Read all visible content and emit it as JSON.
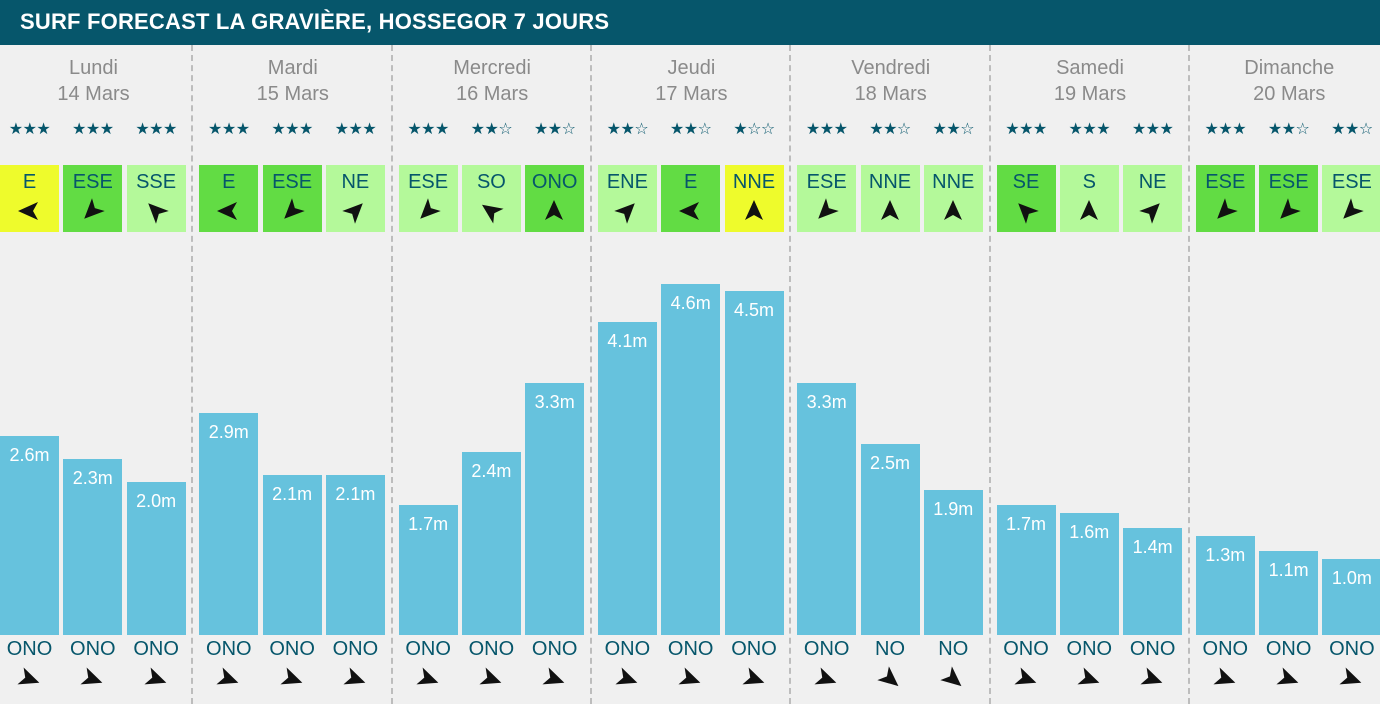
{
  "header": {
    "title": "SURF FORECAST LA GRAVIÈRE, HOSSEGOR 7 JOURS"
  },
  "colors": {
    "header_bg": "#06566b",
    "bar": "#66c2dd",
    "text_dark": "#06566b",
    "wind_offshore": "#62dc44",
    "wind_cross": "#b4f99a",
    "wind_onshore": "#eefb2c"
  },
  "days": [
    {
      "name": "Lundi",
      "date": "14 Mars"
    },
    {
      "name": "Mardi",
      "date": "15 Mars"
    },
    {
      "name": "Mercredi",
      "date": "16 Mars"
    },
    {
      "name": "Jeudi",
      "date": "17 Mars"
    },
    {
      "name": "Vendredi",
      "date": "18 Mars"
    },
    {
      "name": "Samedi",
      "date": "19 Mars"
    },
    {
      "name": "Dimanche",
      "date": "20 Mars"
    }
  ],
  "chart_data": {
    "type": "bar",
    "unit": "m",
    "ylim": [
      0,
      5
    ],
    "slots_per_day": 3,
    "values": [
      2.6,
      2.3,
      2.0,
      2.9,
      2.1,
      2.1,
      1.7,
      2.4,
      3.3,
      4.1,
      4.6,
      4.5,
      3.3,
      2.5,
      1.9,
      1.7,
      1.6,
      1.4,
      1.3,
      1.1,
      1.0
    ],
    "labels": [
      "2.6m",
      "2.3m",
      "2.0m",
      "2.9m",
      "2.1m",
      "2.1m",
      "1.7m",
      "2.4m",
      "3.3m",
      "4.1m",
      "4.6m",
      "4.5m",
      "3.3m",
      "2.5m",
      "1.9m",
      "1.7m",
      "1.6m",
      "1.4m",
      "1.3m",
      "1.1m",
      "1.0m"
    ],
    "ratings": [
      3,
      3,
      3,
      3,
      3,
      3,
      3,
      2,
      2,
      2,
      2,
      1,
      3,
      2,
      2,
      3,
      3,
      3,
      3,
      2,
      2
    ],
    "wind_dirs": [
      "E",
      "ESE",
      "SSE",
      "E",
      "ESE",
      "NE",
      "ESE",
      "SO",
      "ONO",
      "ENE",
      "E",
      "NNE",
      "ESE",
      "NNE",
      "NNE",
      "SE",
      "S",
      "NE",
      "ESE",
      "ESE",
      "ESE"
    ],
    "wind_rating": [
      "onshore",
      "offshore",
      "cross",
      "offshore",
      "offshore",
      "cross",
      "cross",
      "cross",
      "offshore",
      "cross",
      "offshore",
      "onshore",
      "cross",
      "cross",
      "cross",
      "offshore",
      "cross",
      "cross",
      "offshore",
      "offshore",
      "cross"
    ],
    "wind_arrow_deg": [
      180,
      135,
      -135,
      180,
      135,
      -45,
      135,
      -145,
      -90,
      -45,
      180,
      -90,
      135,
      -90,
      -90,
      -135,
      -90,
      -45,
      135,
      135,
      135
    ],
    "swell_dirs": [
      "ONO",
      "ONO",
      "ONO",
      "ONO",
      "ONO",
      "ONO",
      "ONO",
      "ONO",
      "ONO",
      "ONO",
      "ONO",
      "ONO",
      "ONO",
      "NO",
      "NO",
      "ONO",
      "ONO",
      "ONO",
      "ONO",
      "ONO",
      "ONO"
    ],
    "swell_arrow_deg": [
      20,
      20,
      20,
      20,
      20,
      20,
      20,
      20,
      20,
      20,
      20,
      20,
      20,
      40,
      40,
      20,
      20,
      20,
      20,
      20,
      20
    ]
  }
}
